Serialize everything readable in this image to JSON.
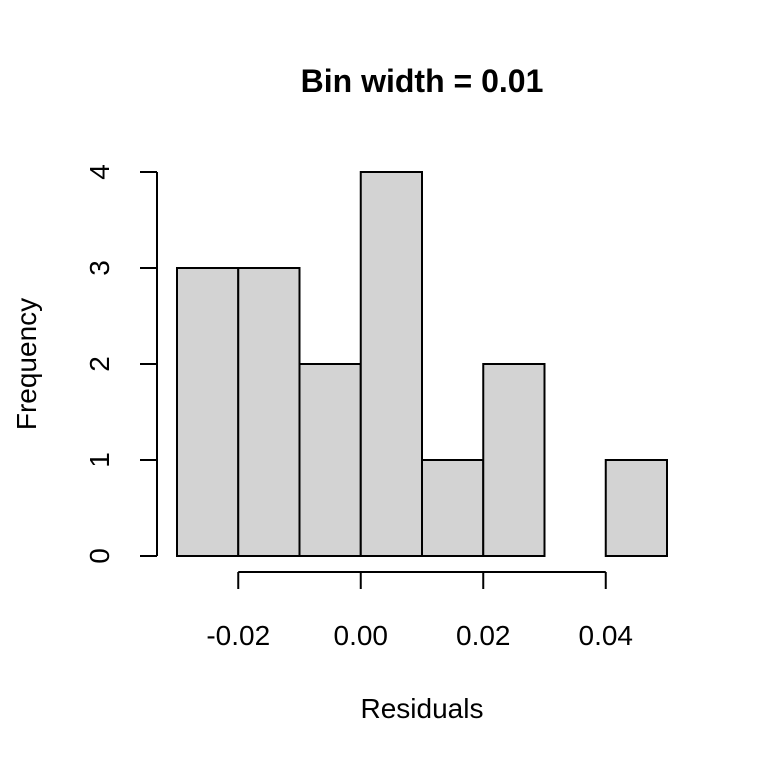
{
  "chart_data": {
    "type": "bar",
    "title": "Bin width = 0.01",
    "xlabel": "Residuals",
    "ylabel": "Frequency",
    "bins": [
      {
        "start": -0.03,
        "end": -0.02,
        "count": 3
      },
      {
        "start": -0.02,
        "end": -0.01,
        "count": 3
      },
      {
        "start": -0.01,
        "end": 0.0,
        "count": 2
      },
      {
        "start": 0.0,
        "end": 0.01,
        "count": 4
      },
      {
        "start": 0.01,
        "end": 0.02,
        "count": 1
      },
      {
        "start": 0.02,
        "end": 0.03,
        "count": 2
      },
      {
        "start": 0.03,
        "end": 0.04,
        "count": 0
      },
      {
        "start": 0.04,
        "end": 0.05,
        "count": 1
      }
    ],
    "xticks": [
      {
        "value": -0.02,
        "label": "-0.02"
      },
      {
        "value": 0.0,
        "label": "0.00"
      },
      {
        "value": 0.02,
        "label": "0.02"
      },
      {
        "value": 0.04,
        "label": "0.04"
      }
    ],
    "yticks": [
      {
        "value": 0,
        "label": "0"
      },
      {
        "value": 1,
        "label": "1"
      },
      {
        "value": 2,
        "label": "2"
      },
      {
        "value": 3,
        "label": "3"
      },
      {
        "value": 4,
        "label": "4"
      }
    ],
    "xlim": [
      -0.03,
      0.05
    ],
    "ylim": [
      0,
      4
    ],
    "grid": false,
    "bar_color": "#d3d3d3",
    "edge_color": "#000000"
  }
}
